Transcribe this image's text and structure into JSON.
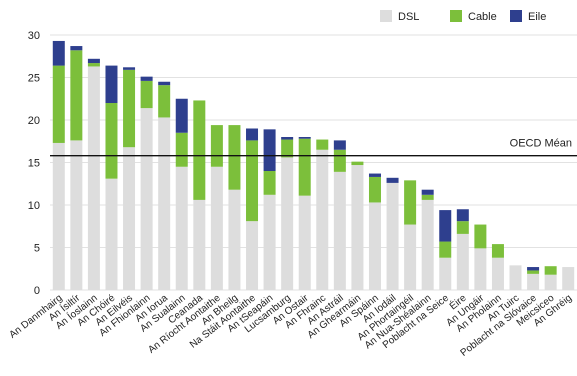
{
  "chart_data": {
    "type": "bar",
    "stacked": true,
    "grid": true,
    "legend_position": "top-right",
    "ylim": [
      0,
      30
    ],
    "yticks": [
      0,
      5,
      10,
      15,
      20,
      25,
      30
    ],
    "categories": [
      "An Danmhairg",
      "An Ísiltír",
      "An Íoslainn",
      "An Chóiré",
      "An Eilvéis",
      "An Fhionlainn",
      "An Iorua",
      "An Sualainn",
      "Ceanada",
      "An Ríocht Aontaithe",
      "An Bheilg",
      "Na Stáit Aontaithe",
      "An tSeapáin",
      "Lucsamburg",
      "An Ostair",
      "An Fhrainc",
      "An Astráil",
      "An Ghearmáin",
      "An Spáinn",
      "An Iodáil",
      "An Phortaingéil",
      "An Nua-Shéalainn",
      "Poblacht na Seice",
      "Éire",
      "An Ungáir",
      "An Pholainn",
      "An Tuirc",
      "Poblacht na Slóvaice",
      "Meicsiceo",
      "An Ghréig"
    ],
    "series": [
      {
        "name": "DSL",
        "color": "#dddddd",
        "values": [
          17.3,
          17.6,
          26.3,
          13.1,
          16.8,
          21.4,
          20.3,
          14.5,
          10.6,
          14.5,
          11.8,
          8.1,
          11.2,
          15.6,
          11.1,
          16.5,
          13.9,
          14.7,
          10.3,
          12.6,
          7.7,
          10.6,
          3.8,
          6.6,
          4.9,
          3.8,
          2.9,
          1.9,
          1.8,
          2.7
        ]
      },
      {
        "name": "Cable",
        "color": "#7cbf3b",
        "values": [
          9.1,
          10.6,
          0.4,
          8.9,
          9.1,
          3.2,
          3.8,
          4.0,
          11.7,
          4.9,
          7.6,
          9.5,
          2.8,
          2.1,
          6.7,
          1.2,
          2.6,
          0.4,
          3.0,
          0.0,
          5.2,
          0.6,
          1.9,
          1.5,
          2.8,
          1.6,
          0.0,
          0.4,
          1.0,
          0.0
        ]
      },
      {
        "name": "Eile",
        "color": "#2e3f8e",
        "values": [
          2.9,
          0.5,
          0.5,
          4.4,
          0.3,
          0.5,
          0.4,
          4.0,
          0.0,
          0.0,
          0.0,
          1.4,
          4.9,
          0.3,
          0.2,
          0.0,
          1.1,
          0.0,
          0.4,
          0.6,
          0.0,
          0.6,
          3.7,
          1.4,
          0.0,
          0.0,
          0.0,
          0.4,
          0.0,
          0.0
        ]
      }
    ],
    "reference_line": {
      "value": 15.8,
      "label": "OECD Méan"
    }
  }
}
